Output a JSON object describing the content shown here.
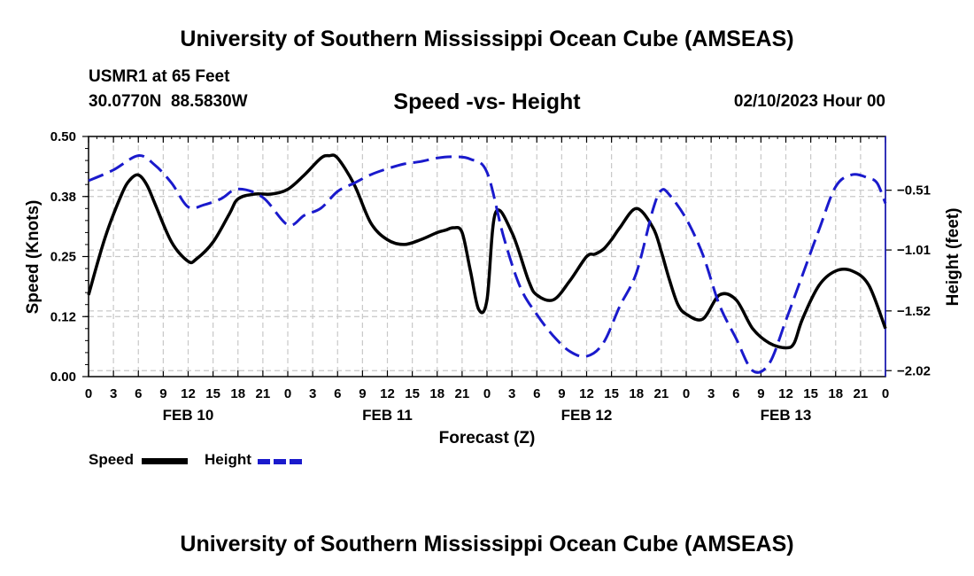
{
  "header": {
    "title": "University of Southern Mississippi Ocean Cube (AMSEAS)",
    "station": "USMR1 at 65 Feet",
    "coords": "30.0770N  88.5830W",
    "subtitle": "Speed -vs- Height",
    "runtime": "02/10/2023 Hour 00"
  },
  "footer": {
    "title": "University of Southern Mississippi Ocean Cube (AMSEAS)"
  },
  "legend": {
    "speed": "Speed",
    "height": "Height"
  },
  "colors": {
    "speed": "#000000",
    "height": "#1a1acc",
    "grid": "#c8c8c8"
  },
  "chart_data": {
    "type": "line",
    "xlabel": "Forecast (Z)",
    "ylabel_left": "Speed (Knots)",
    "ylabel_right": "Height (feet)",
    "x_range_hours": [
      0,
      96
    ],
    "x_tick_labels": [
      "0",
      "3",
      "6",
      "9",
      "12",
      "15",
      "18",
      "21",
      "0",
      "3",
      "6",
      "9",
      "12",
      "15",
      "18",
      "21",
      "0",
      "3",
      "6",
      "9",
      "12",
      "15",
      "18",
      "21",
      "0",
      "3",
      "6",
      "9",
      "12",
      "15",
      "18",
      "21",
      "0"
    ],
    "date_labels": [
      {
        "hour": 12,
        "label": "FEB 10"
      },
      {
        "hour": 36,
        "label": "FEB 11"
      },
      {
        "hour": 60,
        "label": "FEB 12"
      },
      {
        "hour": 84,
        "label": "FEB 13"
      }
    ],
    "left_axis": {
      "ylim": [
        0,
        0.5
      ],
      "ticks": [
        "0.00",
        "0.12",
        "0.25",
        "0.38",
        "0.50"
      ]
    },
    "right_axis": {
      "ylim": [
        -2.07,
        -0.06
      ],
      "ticks": [
        "−0.51",
        "−1.01",
        "−1.52",
        "−2.02"
      ],
      "tick_values": [
        -0.51,
        -1.01,
        -1.52,
        -2.02
      ]
    },
    "series": [
      {
        "name": "Speed",
        "axis": "left",
        "x": [
          0,
          2,
          4,
          5,
          6,
          7,
          8,
          10,
          12,
          13,
          15,
          17,
          18,
          20,
          22,
          24,
          26,
          28,
          29,
          30,
          32,
          34,
          36,
          38,
          40,
          42,
          43,
          44,
          45,
          46,
          47,
          48,
          49,
          51,
          53,
          54,
          56,
          58,
          60,
          61,
          62,
          63,
          64,
          66,
          68,
          69,
          70,
          71,
          72,
          74,
          76,
          78,
          80,
          82,
          84,
          85,
          86,
          88,
          90,
          92,
          94,
          96
        ],
        "values": [
          0.17,
          0.29,
          0.38,
          0.41,
          0.42,
          0.4,
          0.36,
          0.28,
          0.24,
          0.245,
          0.28,
          0.34,
          0.37,
          0.38,
          0.38,
          0.39,
          0.42,
          0.455,
          0.46,
          0.455,
          0.4,
          0.32,
          0.285,
          0.275,
          0.285,
          0.3,
          0.305,
          0.31,
          0.3,
          0.22,
          0.14,
          0.16,
          0.34,
          0.3,
          0.2,
          0.17,
          0.16,
          0.2,
          0.25,
          0.255,
          0.265,
          0.285,
          0.31,
          0.35,
          0.31,
          0.26,
          0.2,
          0.15,
          0.13,
          0.12,
          0.17,
          0.16,
          0.1,
          0.07,
          0.06,
          0.07,
          0.12,
          0.19,
          0.22,
          0.22,
          0.19,
          0.1
        ]
      },
      {
        "name": "Height",
        "axis": "right",
        "x": [
          0,
          3,
          6,
          8,
          10,
          12,
          14,
          16,
          18,
          21,
          24,
          26,
          28,
          30,
          32,
          34,
          36,
          38,
          40,
          42,
          44,
          46,
          48,
          50,
          52,
          54,
          56,
          58,
          60,
          62,
          64,
          66,
          68,
          69,
          70,
          72,
          74,
          76,
          78,
          80,
          82,
          84,
          86,
          88,
          90,
          92,
          94,
          95,
          96
        ],
        "values": [
          -0.43,
          -0.34,
          -0.22,
          -0.3,
          -0.45,
          -0.65,
          -0.63,
          -0.58,
          -0.5,
          -0.57,
          -0.8,
          -0.72,
          -0.66,
          -0.52,
          -0.45,
          -0.38,
          -0.33,
          -0.29,
          -0.27,
          -0.24,
          -0.23,
          -0.25,
          -0.36,
          -0.9,
          -1.32,
          -1.55,
          -1.73,
          -1.86,
          -1.9,
          -1.79,
          -1.48,
          -1.2,
          -0.67,
          -0.51,
          -0.55,
          -0.75,
          -1.05,
          -1.47,
          -1.75,
          -2.02,
          -1.96,
          -1.6,
          -1.22,
          -0.84,
          -0.48,
          -0.38,
          -0.41,
          -0.45,
          -0.62
        ]
      }
    ]
  }
}
